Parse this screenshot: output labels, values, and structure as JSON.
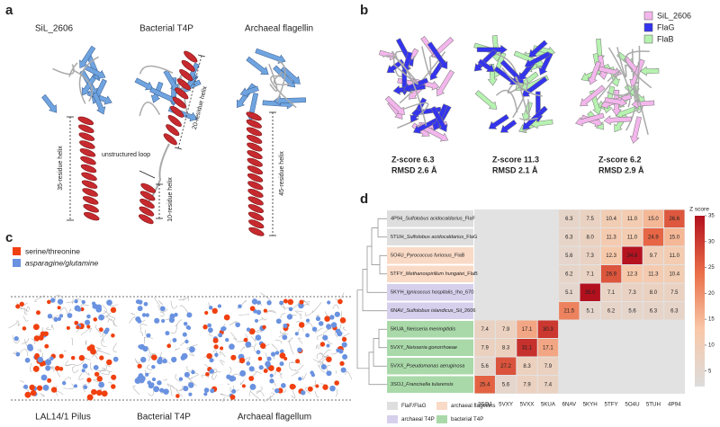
{
  "panel_a": {
    "letter": "a",
    "structures": [
      "SiL_2606",
      "Bacterial T4P",
      "Archaeal flagellin"
    ],
    "annotations": [
      "35-residue helix",
      "unstructured loop",
      "20-residue helix",
      "10-residue helix",
      "45-residue helix"
    ]
  },
  "panel_b": {
    "letter": "b",
    "legend": [
      {
        "name": "SiL_2606",
        "color": "#f3b6ec"
      },
      {
        "name": "FlaG",
        "color": "#3434ee"
      },
      {
        "name": "FlaB",
        "color": "#b6f2b0"
      }
    ],
    "comparisons": [
      {
        "zscore": "Z-score 6.3",
        "rmsd": "RMSD 2.6 Å"
      },
      {
        "zscore": "Z-score 11.3",
        "rmsd": "RMSD 2.1 Å"
      },
      {
        "zscore": "Z-score 6.2",
        "rmsd": "RMSD 2.9 Å"
      }
    ]
  },
  "panel_c": {
    "letter": "c",
    "legend": [
      {
        "name": "serine/threonine",
        "color": "#f0400f"
      },
      {
        "name": "asparagine/glutamine",
        "color": "#6a92e0"
      }
    ],
    "filaments": [
      "LAL14/1 Pilus",
      "Bacterial T4P",
      "Archaeal flagellum"
    ]
  },
  "panel_d": {
    "letter": "d",
    "rows": [
      {
        "prefix": "4P94_",
        "italic": "Sulfolobus acidocaldarius",
        "suffix": "_FlaF",
        "group": 0
      },
      {
        "prefix": "5TUH_",
        "italic": "Sulfolobus acidocaldarius",
        "suffix": "_FlaG",
        "group": 0
      },
      {
        "prefix": "5O4U_",
        "italic": "Pyrococcus furiosus",
        "suffix": "_FlaB",
        "group": 1
      },
      {
        "prefix": "5TFY_",
        "italic": "Methanospirillum hungatei",
        "suffix": "_FlaB",
        "group": 1
      },
      {
        "prefix": "5KYH_",
        "italic": "Ignicoccus hospitalis",
        "suffix": "_Iho_670",
        "group": 2
      },
      {
        "prefix": "6NAV_",
        "italic": "Sulfolobus islandicus",
        "suffix": "_Sil_2606",
        "group": 2
      },
      {
        "prefix": "5KUA_",
        "italic": "Neisseria meningitidis",
        "group": 3
      },
      {
        "prefix": "5VXY_",
        "italic": "Neisseria gonorrhoeae",
        "group": 3
      },
      {
        "prefix": "5VXX_",
        "italic": "Pseudomonas aeruginosa",
        "group": 3
      },
      {
        "prefix": "3SOJ_",
        "italic": "Francisella tularensis",
        "group": 3
      }
    ],
    "columns": [
      "3SOJ",
      "5VXY",
      "5VXX",
      "5KUA",
      "6NAV",
      "5KYH",
      "5TFY",
      "5O4U",
      "5TUH",
      "4P94"
    ],
    "values": [
      [
        null,
        null,
        null,
        null,
        6.3,
        7.5,
        10.4,
        11.0,
        15.0,
        26.6
      ],
      [
        null,
        null,
        null,
        null,
        6.3,
        8.0,
        11.3,
        11.0,
        24.9,
        15.0
      ],
      [
        null,
        null,
        null,
        null,
        5.6,
        7.3,
        12.3,
        34.6,
        9.7,
        11.0
      ],
      [
        null,
        null,
        null,
        null,
        6.2,
        7.1,
        26.9,
        12.3,
        11.3,
        10.4
      ],
      [
        null,
        null,
        null,
        null,
        5.1,
        35.0,
        7.1,
        7.3,
        8.0,
        7.5
      ],
      [
        null,
        null,
        null,
        null,
        21.5,
        5.1,
        6.2,
        5.6,
        6.3,
        6.3
      ],
      [
        7.4,
        7.9,
        17.1,
        30.3,
        null,
        null,
        null,
        null,
        null,
        null
      ],
      [
        7.9,
        8.3,
        31.1,
        17.1,
        null,
        null,
        null,
        null,
        null,
        null
      ],
      [
        5.6,
        27.2,
        8.3,
        7.9,
        null,
        null,
        null,
        null,
        null,
        null
      ],
      [
        25.4,
        5.6,
        7.9,
        7.4,
        null,
        null,
        null,
        null,
        null,
        null
      ]
    ],
    "value_labels": [
      [
        null,
        null,
        null,
        null,
        "6.3",
        "7.5",
        "10.4",
        "11.0",
        "15.0",
        "26.6"
      ],
      [
        null,
        null,
        null,
        null,
        "6.3",
        "8.0",
        "11.3",
        "11.0",
        "24.9",
        "15.0"
      ],
      [
        null,
        null,
        null,
        null,
        "5.6",
        "7.3",
        "12.3",
        "34.6",
        "9.7",
        "11.0"
      ],
      [
        null,
        null,
        null,
        null,
        "6.2",
        "7.1",
        "26.9",
        "12.3",
        "11.3",
        "10.4"
      ],
      [
        null,
        null,
        null,
        null,
        "5.1",
        "35.0",
        "7.1",
        "7.3",
        "8.0",
        "7.5"
      ],
      [
        null,
        null,
        null,
        null,
        "21.5",
        "5.1",
        "6.2",
        "5.6",
        "6.3",
        "6.3"
      ],
      [
        "7.4",
        "7.9",
        "17.1",
        "30.3",
        null,
        null,
        null,
        null,
        null,
        null
      ],
      [
        "7.9",
        "8.3",
        "31.1",
        "17.1",
        null,
        null,
        null,
        null,
        null,
        null
      ],
      [
        "5.6",
        "27.2",
        "8.3",
        "7.9",
        null,
        null,
        null,
        null,
        null,
        null
      ],
      [
        "25.4",
        "5.6",
        "7.9",
        "7.4",
        null,
        null,
        null,
        null,
        null,
        null
      ]
    ],
    "colorbar": {
      "title": "Z score",
      "zlim": [
        2,
        35
      ],
      "ticks": [
        5,
        10,
        15,
        20,
        25,
        30,
        35
      ],
      "colors": [
        "#dcdcdc",
        "#f8c8a8",
        "#ea6e48",
        "#b3101e"
      ]
    },
    "groups": [
      {
        "name": "FlaF/FlaG",
        "color": "#dedede"
      },
      {
        "name": "archaeal flagellins",
        "color": "#f9dac6"
      },
      {
        "name": "archaeal T4P",
        "color": "#d6d0ec"
      },
      {
        "name": "bacterial T4P",
        "color": "#a9d9a9"
      }
    ]
  }
}
